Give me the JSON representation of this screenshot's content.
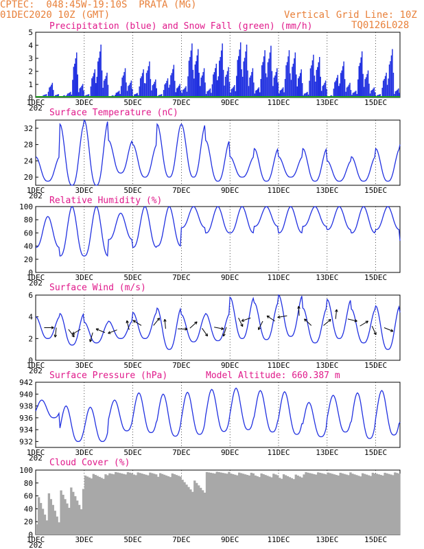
{
  "header": {
    "line1": "CPTEC:  048:45W-19:10S  PRATA (MG)",
    "line2": "01DEC2020 10Z (GMT)",
    "right1": "Vertical Grid Line: 10Z",
    "right2": "TQ0126L028"
  },
  "colors": {
    "series": "#2030e0",
    "snow": "#20a020",
    "title": "#e0188a",
    "header": "#e8803a",
    "cloud": "#a8a8a8"
  },
  "x_ticks": [
    "1DEC",
    "3DEC",
    "5DEC",
    "7DEC",
    "9DEC",
    "11DEC",
    "13DEC",
    "15DEC"
  ],
  "x_year_fragment": "202",
  "chart_data": [
    {
      "type": "bar",
      "title": "Precipitation (blue) and Snow Fall (green) (mm/h)",
      "ylim": [
        0,
        5
      ],
      "yticks": [
        "0",
        "1",
        "2",
        "3",
        "4",
        "5"
      ],
      "series": [
        {
          "name": "Precipitation",
          "values_by_day": [
            [
              0.1,
              0.3,
              1.3,
              0.3
            ],
            [
              0.2,
              0.5,
              4.0,
              1.2
            ],
            [
              0.3,
              2.5,
              4.7,
              2.2
            ],
            [
              0.2,
              0.6,
              2.6,
              1.5
            ],
            [
              0.4,
              2.5,
              3.2,
              1.6
            ],
            [
              0.3,
              1.7,
              2.9,
              1.2
            ],
            [
              1.0,
              4.8,
              4.3,
              2.6
            ],
            [
              0.8,
              3.0,
              4.8,
              2.7
            ],
            [
              1.1,
              4.9,
              4.7,
              2.6
            ],
            [
              0.9,
              4.2,
              4.6,
              2.6
            ],
            [
              0.9,
              4.2,
              4.0,
              2.5
            ],
            [
              0.5,
              3.8,
              3.6,
              1.5
            ],
            [
              0.2,
              2.0,
              3.2,
              1.3
            ],
            [
              0.6,
              4.1,
              2.4,
              0.9
            ],
            [
              0.3,
              2.2,
              4.3,
              0.8
            ],
            [
              0.2,
              1.8,
              2.2,
              0.6
            ]
          ]
        },
        {
          "name": "Snow Fall",
          "values": [
            0
          ]
        }
      ]
    },
    {
      "type": "line",
      "title": "Surface Temperature (nC)",
      "ylim": [
        18,
        34
      ],
      "yticks": [
        "20",
        "24",
        "28",
        "32"
      ],
      "daily_min_max": [
        [
          19,
          25
        ],
        [
          18,
          33
        ],
        [
          18,
          34
        ],
        [
          21,
          29
        ],
        [
          20,
          28
        ],
        [
          20,
          33
        ],
        [
          20,
          33
        ],
        [
          19,
          29
        ],
        [
          20,
          25
        ],
        [
          19,
          27
        ],
        [
          20,
          25
        ],
        [
          19,
          27
        ],
        [
          19,
          24
        ],
        [
          19,
          25
        ],
        [
          19,
          27
        ],
        [
          20,
          28
        ]
      ]
    },
    {
      "type": "line",
      "title": "Relative Humidity (%)",
      "ylim": [
        0,
        100
      ],
      "yticks": [
        "0",
        "20",
        "40",
        "60",
        "80",
        "100"
      ],
      "daily_min_max": [
        [
          38,
          85
        ],
        [
          25,
          100
        ],
        [
          25,
          100
        ],
        [
          50,
          90
        ],
        [
          38,
          100
        ],
        [
          40,
          100
        ],
        [
          68,
          100
        ],
        [
          60,
          100
        ],
        [
          60,
          100
        ],
        [
          70,
          100
        ],
        [
          60,
          100
        ],
        [
          70,
          100
        ],
        [
          65,
          100
        ],
        [
          60,
          100
        ],
        [
          65,
          100
        ],
        [
          48,
          100
        ]
      ]
    },
    {
      "type": "line",
      "title": "Surface Wind (m/s)",
      "ylim": [
        0,
        6
      ],
      "yticks": [
        "0",
        "2",
        "4",
        "6"
      ],
      "daily_min_max": [
        [
          2.0,
          4.0
        ],
        [
          1.4,
          4.3
        ],
        [
          1.6,
          3.5
        ],
        [
          2.0,
          3.6
        ],
        [
          2.0,
          4.4
        ],
        [
          1.0,
          4.8
        ],
        [
          1.7,
          4.2
        ],
        [
          1.8,
          4.3
        ],
        [
          2.0,
          5.8
        ],
        [
          1.9,
          5.3
        ],
        [
          2.2,
          6.0
        ],
        [
          1.6,
          4.8
        ],
        [
          2.0,
          5.6
        ],
        [
          1.6,
          4.7
        ],
        [
          1.0,
          5.0
        ],
        [
          1.6,
          4.4
        ]
      ]
    },
    {
      "type": "line",
      "title": "Surface Pressure (hPa)",
      "subtitle": "Model Altitude: 660.387 m",
      "ylim": [
        931,
        942
      ],
      "yticks": [
        "932",
        "934",
        "936",
        "938",
        "940",
        "942"
      ],
      "daily_min_max": [
        [
          936.0,
          939.0
        ],
        [
          932.0,
          938.0
        ],
        [
          932.0,
          937.8
        ],
        [
          933.8,
          939.0
        ],
        [
          933.5,
          940.2
        ],
        [
          932.9,
          940.0
        ],
        [
          933.2,
          940.3
        ],
        [
          933.7,
          940.8
        ],
        [
          934.0,
          941.0
        ],
        [
          933.6,
          940.6
        ],
        [
          933.2,
          940.4
        ],
        [
          932.8,
          938.6
        ],
        [
          933.6,
          939.8
        ],
        [
          932.5,
          940.2
        ],
        [
          933.1,
          940.6
        ],
        [
          932.6,
          939.7
        ]
      ]
    },
    {
      "type": "area",
      "title": "Cloud Cover (%)",
      "ylim": [
        0,
        100
      ],
      "yticks": [
        "0",
        "20",
        "40",
        "60",
        "80",
        "100"
      ],
      "daily_mean": [
        40,
        55,
        90,
        95,
        94,
        92,
        75,
        96,
        94,
        92,
        90,
        95,
        94,
        93,
        94,
        95
      ]
    }
  ]
}
